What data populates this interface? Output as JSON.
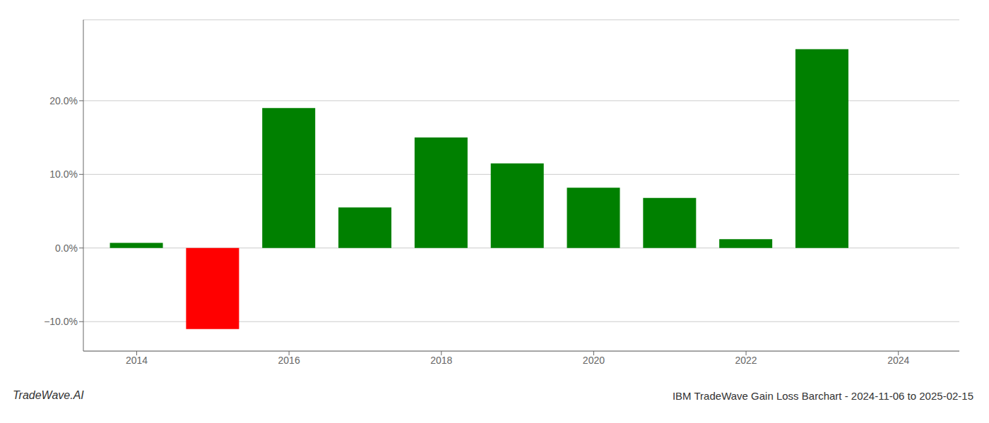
{
  "chart_data": {
    "type": "bar",
    "title": "IBM TradeWave Gain Loss Barchart - 2024-11-06 to 2025-02-15",
    "annotations": [
      "TradeWave.AI"
    ],
    "x": [
      2014,
      2015,
      2016,
      2017,
      2018,
      2019,
      2020,
      2021,
      2022,
      2023
    ],
    "values": [
      0.7,
      -11.0,
      19.0,
      5.5,
      15.0,
      11.5,
      8.2,
      6.8,
      1.2,
      27.0
    ],
    "colors": [
      "#008000",
      "#ff0000",
      "#008000",
      "#008000",
      "#008000",
      "#008000",
      "#008000",
      "#008000",
      "#008000",
      "#008000"
    ],
    "xlim": [
      2013.3,
      2024.8
    ],
    "xticks": [
      2014,
      2016,
      2018,
      2020,
      2022,
      2024
    ],
    "ylim": [
      -14,
      31
    ],
    "yticks": [
      {
        "value": -10,
        "label": "−10.0%"
      },
      {
        "value": 0,
        "label": "0.0%"
      },
      {
        "value": 10,
        "label": "10.0%"
      },
      {
        "value": 20,
        "label": "20.0%"
      }
    ],
    "grid": true
  }
}
